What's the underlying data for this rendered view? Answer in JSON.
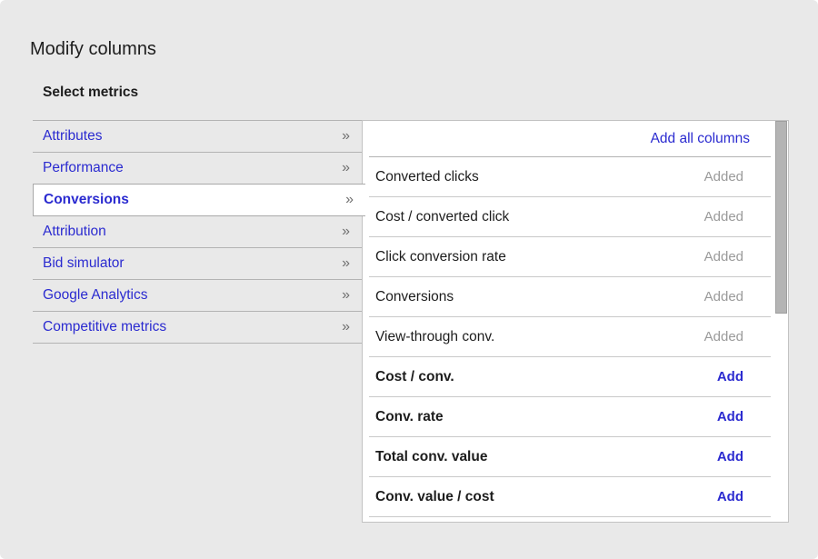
{
  "dialog": {
    "title": "Modify columns",
    "subtitle": "Select metrics"
  },
  "colors": {
    "accent_blue": "#2b2bd0",
    "added_gray": "#9a9a9a",
    "text_black": "#1d1d1d",
    "chevron_gray": "#6f6f6f",
    "dialog_bg": "#e9e9e9",
    "panel_bg": "#ffffff",
    "panel_border": "#c2c2c2",
    "row_separator": "#c9c9c9",
    "sidebar_separator": "#b3b3b3",
    "scrollbar_thumb": "#b4b4b4"
  },
  "sidebar": {
    "chevron_icon": "»",
    "items": [
      {
        "label": "Attributes",
        "selected": false
      },
      {
        "label": "Performance",
        "selected": false
      },
      {
        "label": "Conversions",
        "selected": true
      },
      {
        "label": "Attribution",
        "selected": false
      },
      {
        "label": "Bid simulator",
        "selected": false
      },
      {
        "label": "Google Analytics",
        "selected": false
      },
      {
        "label": "Competitive metrics",
        "selected": false
      }
    ]
  },
  "panel": {
    "add_all_label": "Add all columns",
    "rows": [
      {
        "metric": "Converted clicks",
        "action": "Added",
        "state": "added"
      },
      {
        "metric": "Cost / converted click",
        "action": "Added",
        "state": "added"
      },
      {
        "metric": "Click conversion rate",
        "action": "Added",
        "state": "added"
      },
      {
        "metric": "Conversions",
        "action": "Added",
        "state": "added"
      },
      {
        "metric": "View-through conv.",
        "action": "Added",
        "state": "added"
      },
      {
        "metric": "Cost / conv.",
        "action": "Add",
        "state": "addable"
      },
      {
        "metric": "Conv. rate",
        "action": "Add",
        "state": "addable"
      },
      {
        "metric": "Total conv. value",
        "action": "Add",
        "state": "addable"
      },
      {
        "metric": "Conv. value / cost",
        "action": "Add",
        "state": "addable"
      }
    ]
  }
}
